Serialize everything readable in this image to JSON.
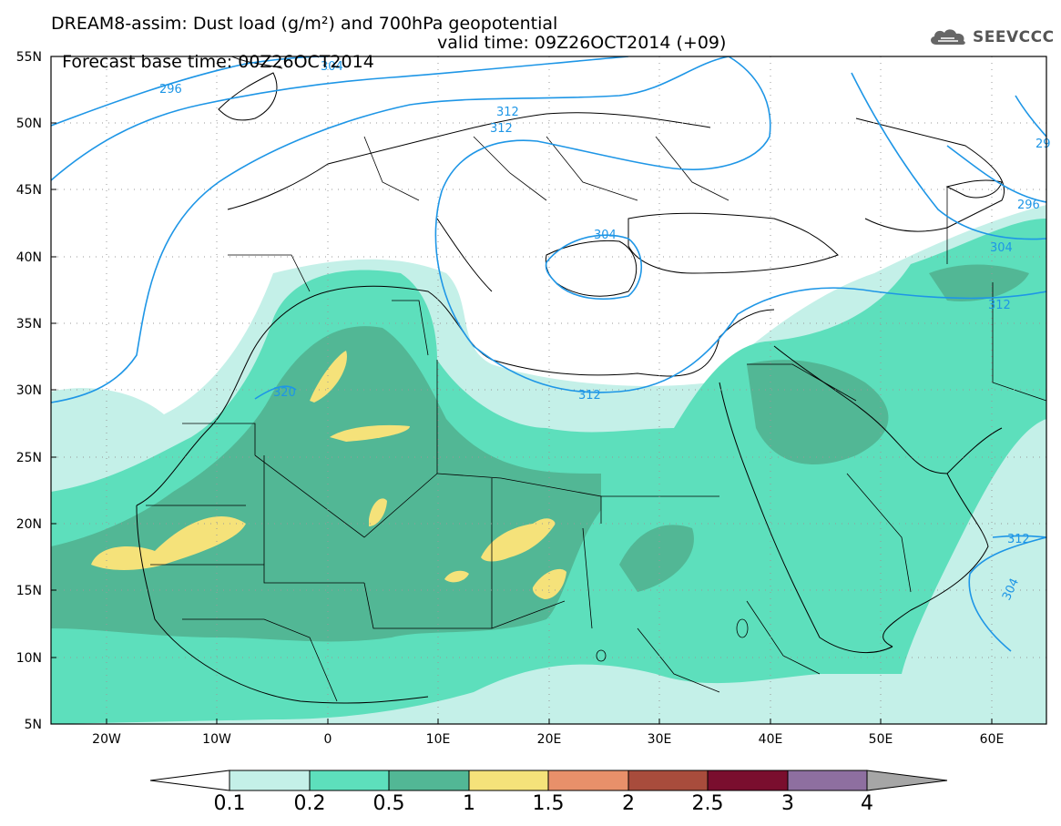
{
  "title": {
    "line1": "DREAM8-assim: Dust load (g/m²) and 700hPa geopotential",
    "base_time": "Forecast base time: 00Z26OCT2014",
    "valid_time": "valid time: 09Z26OCT2014 (+09)"
  },
  "logo": {
    "text": "SEEVCCC",
    "icon": "cloud-icon"
  },
  "map": {
    "lat_range": [
      5,
      55
    ],
    "lon_range": [
      -25,
      65
    ],
    "lat_labels": [
      "55N",
      "50N",
      "45N",
      "40N",
      "35N",
      "30N",
      "25N",
      "20N",
      "15N",
      "10N",
      "5N"
    ],
    "lon_labels": [
      "20W",
      "10W",
      "0",
      "10E",
      "20E",
      "30E",
      "40E",
      "50E",
      "60E"
    ],
    "contour_labels": [
      "296",
      "304",
      "312",
      "312",
      "304",
      "320",
      "312",
      "296",
      "304",
      "312",
      "312",
      "304",
      "29"
    ]
  },
  "colorbar": {
    "levels": [
      "0.1",
      "0.2",
      "0.5",
      "1",
      "1.5",
      "2",
      "2.5",
      "3",
      "4"
    ],
    "colors": [
      "#ffffff",
      "#c4f0e8",
      "#5ddfbc",
      "#52b795",
      "#f5e27a",
      "#e8906a",
      "#a84c3c",
      "#7a0e2e",
      "#8e6fa0",
      "#a6a6a6"
    ]
  },
  "colors": {
    "contour": "#1e96e6",
    "dust_01": "#c4f0e8",
    "dust_02": "#5ddfbc",
    "dust_05": "#52b795",
    "dust_1": "#f5e27a"
  }
}
